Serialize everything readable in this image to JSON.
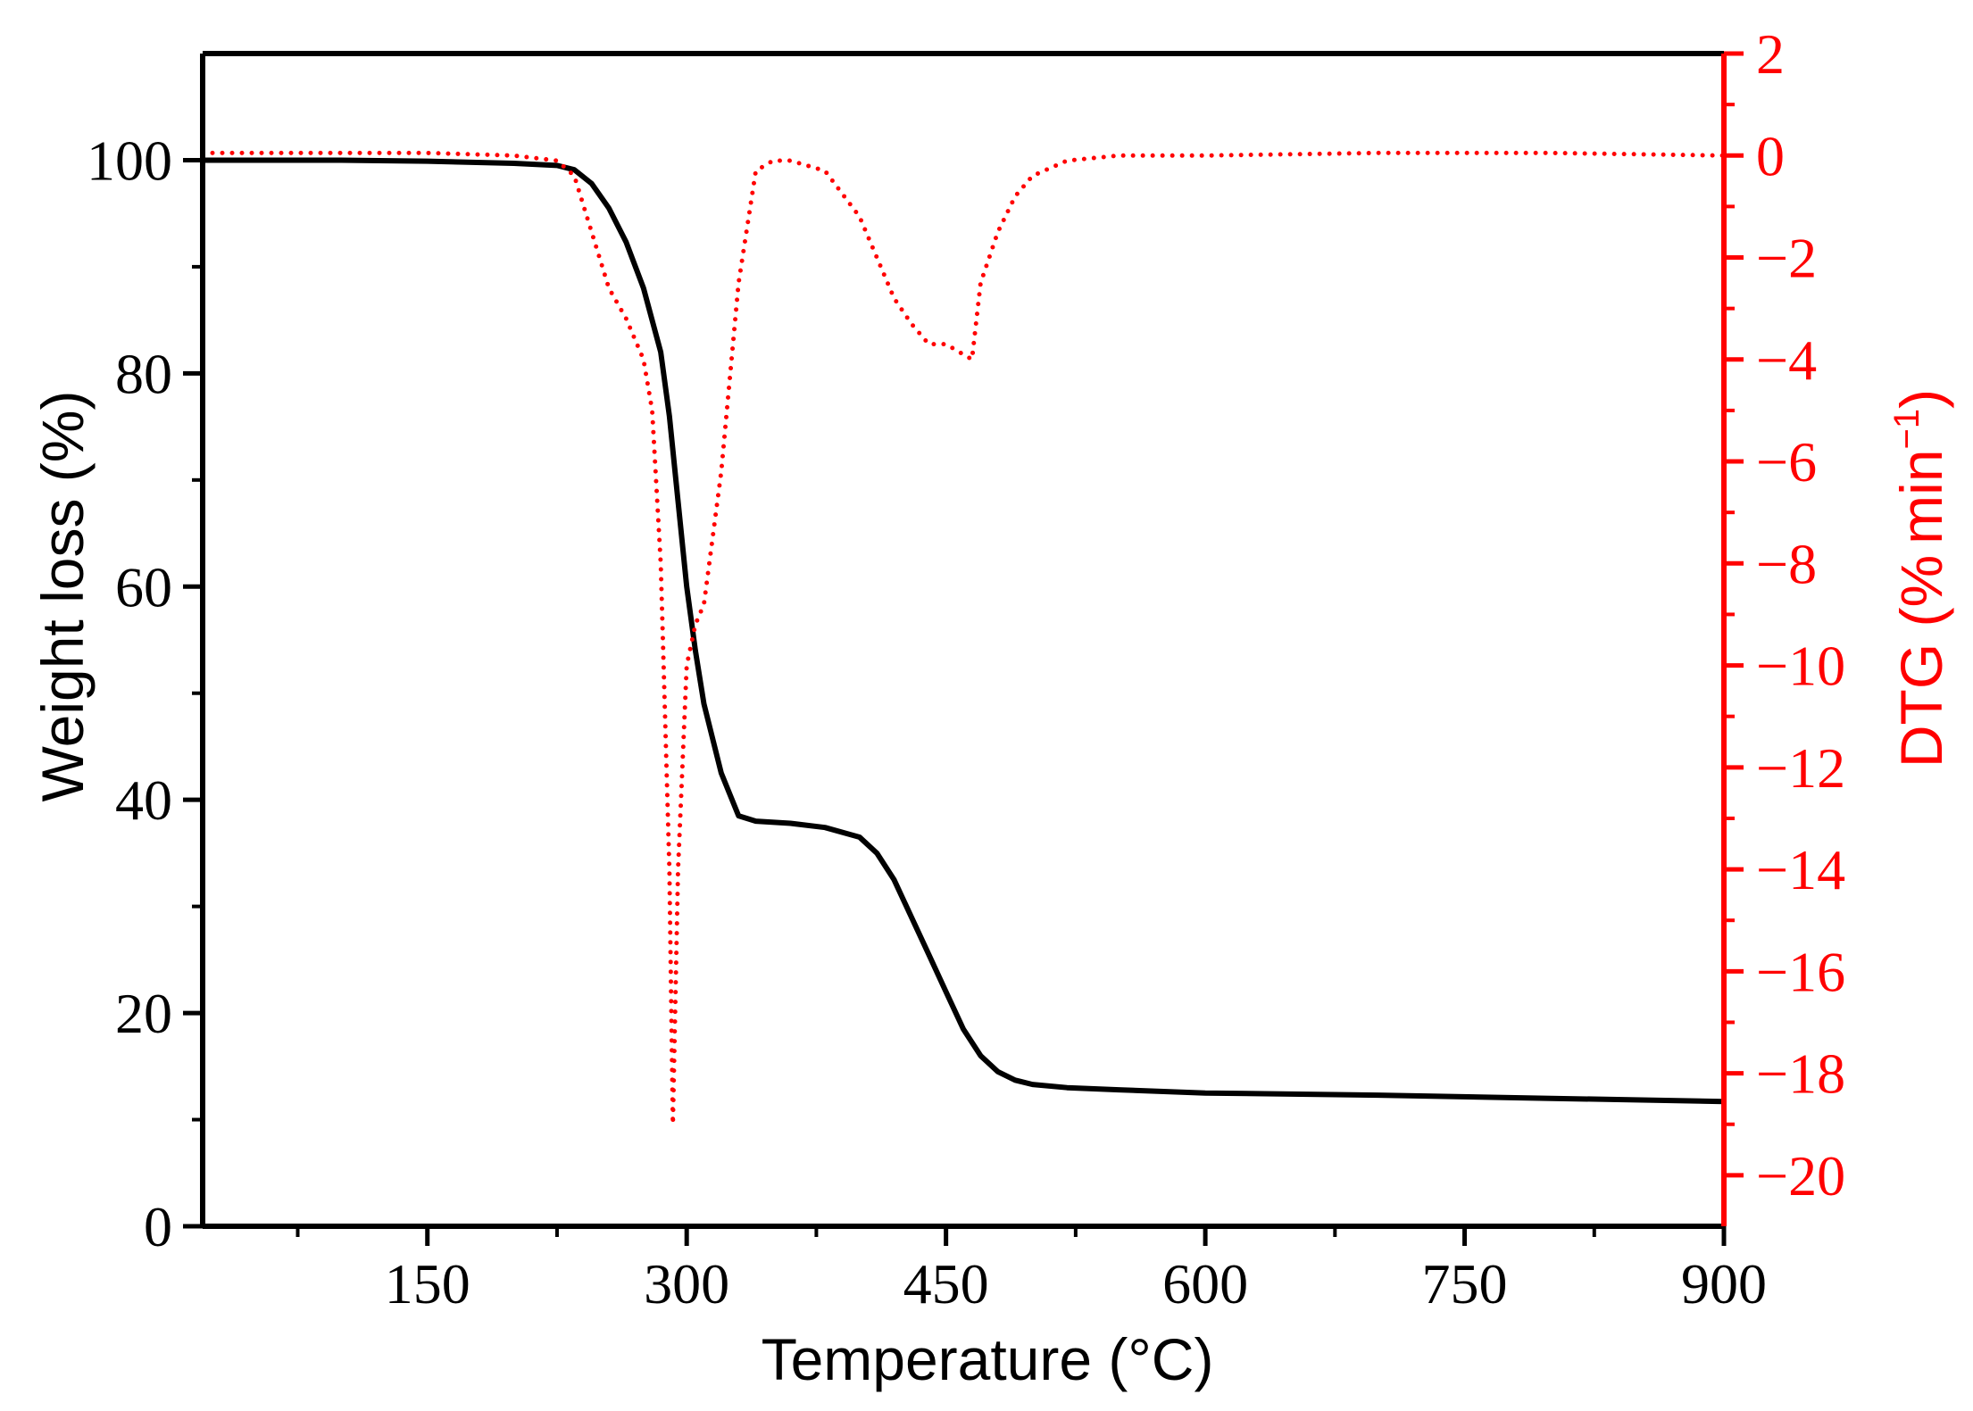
{
  "chart_data": {
    "type": "line",
    "xlabel": "Temperature (°C)",
    "ylabel_left": "Weight loss (%)",
    "ylabel_right_parts": {
      "pre": "DTG (%",
      "post": "min",
      "sup": "−1",
      "close": ")"
    },
    "xlim": [
      20,
      900
    ],
    "ylim_left": [
      0,
      110
    ],
    "ylim_right": [
      -21,
      2
    ],
    "x_ticks": [
      150,
      300,
      450,
      600,
      750,
      900
    ],
    "y_left_ticks": [
      0,
      20,
      40,
      60,
      80,
      100
    ],
    "y_right_ticks": [
      2,
      0,
      -2,
      -4,
      -6,
      -8,
      -10,
      -12,
      -14,
      -16,
      -18,
      -20
    ],
    "grid": false,
    "colors": {
      "tg": "#000000",
      "dtg": "#ff0000",
      "axis_right": "#ff0000",
      "axis_left": "#000000"
    },
    "series": [
      {
        "axis": "left",
        "style": "solid",
        "x": [
          20,
          100,
          150,
          200,
          225,
          235,
          245,
          255,
          265,
          275,
          285,
          290,
          295,
          300,
          305,
          310,
          320,
          330,
          340,
          360,
          380,
          400,
          410,
          420,
          430,
          440,
          450,
          460,
          470,
          480,
          490,
          500,
          520,
          550,
          600,
          700,
          800,
          900
        ],
        "y": [
          100,
          100,
          99.9,
          99.7,
          99.5,
          99.1,
          97.8,
          95.5,
          92.3,
          88.0,
          82.0,
          76.0,
          68.0,
          60.0,
          54.0,
          49.0,
          42.5,
          38.5,
          38.0,
          37.8,
          37.4,
          36.5,
          35.0,
          32.5,
          29.0,
          25.5,
          22.0,
          18.5,
          16.0,
          14.5,
          13.7,
          13.3,
          13.0,
          12.8,
          12.5,
          12.3,
          12.0,
          11.7
        ]
      },
      {
        "axis": "right",
        "style": "dotted",
        "x": [
          20,
          100,
          150,
          200,
          225,
          235,
          245,
          255,
          265,
          275,
          280,
          285,
          290,
          292,
          295,
          300,
          305,
          310,
          320,
          330,
          340,
          350,
          360,
          380,
          400,
          410,
          420,
          430,
          440,
          450,
          460,
          465,
          470,
          480,
          490,
          500,
          520,
          550,
          600,
          700,
          800,
          900
        ],
        "y": [
          0.05,
          0.05,
          0.05,
          0.0,
          -0.1,
          -0.4,
          -1.5,
          -2.6,
          -3.2,
          -4.0,
          -5.0,
          -8.0,
          -14.0,
          -19.0,
          -14.0,
          -10.0,
          -9.2,
          -8.8,
          -6.2,
          -2.5,
          -0.3,
          -0.1,
          -0.1,
          -0.3,
          -1.2,
          -2.0,
          -2.8,
          -3.3,
          -3.7,
          -3.7,
          -3.9,
          -4.0,
          -2.5,
          -1.5,
          -0.8,
          -0.4,
          -0.1,
          0.0,
          0.0,
          0.05,
          0.05,
          0.0
        ]
      }
    ]
  }
}
